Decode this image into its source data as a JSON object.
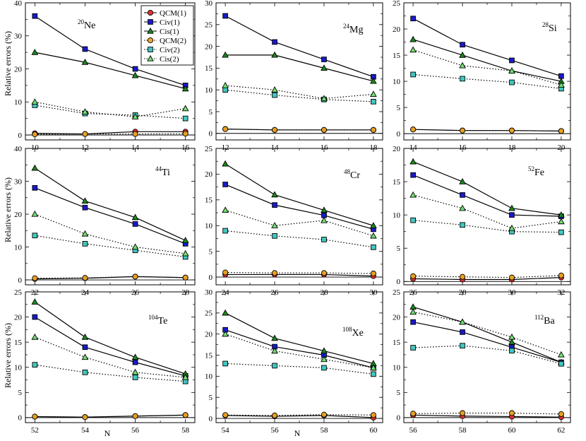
{
  "figure": {
    "ylabel": "Relative errors (%)",
    "xlabel": "N",
    "colors": {
      "QCM": "#e8a020",
      "QCM1_fill": "#e03030",
      "Civ": "#1a1ac8",
      "Civ2_fill": "#40c8c0",
      "Cis": "#1a8a1a",
      "Cis2_fill": "#70e070",
      "line": "#000000"
    },
    "legend": [
      {
        "label": "QCM(1)",
        "marker": "circle",
        "fill": "#e03030",
        "dash": false
      },
      {
        "label": "Civ(1)",
        "marker": "square",
        "fill": "#1a1ac8",
        "dash": false
      },
      {
        "label": "Cis(1)",
        "marker": "triangle",
        "fill": "#1a8a1a",
        "dash": false
      },
      {
        "label": "QCM(2)",
        "marker": "circle",
        "fill": "#f0a830",
        "dash": true
      },
      {
        "label": "Civ(2)",
        "marker": "square",
        "fill": "#40c8c0",
        "dash": true
      },
      {
        "label": "Cis(2)",
        "marker": "triangle",
        "fill": "#70e070",
        "dash": true
      }
    ]
  },
  "chart_data": [
    {
      "type": "line",
      "nucleus_mass": "20",
      "nucleus_symbol": "Ne",
      "x": [
        10,
        12,
        14,
        16
      ],
      "xticks": [
        10,
        12,
        14,
        16
      ],
      "ylim": [
        -1.5,
        40
      ],
      "yticks": [
        0,
        10,
        20,
        30,
        40
      ],
      "series": [
        {
          "name": "QCM(1)",
          "values": [
            0.5,
            0.3,
            1.0,
            1.0
          ]
        },
        {
          "name": "Civ(1)",
          "values": [
            36,
            26,
            20,
            15
          ]
        },
        {
          "name": "Cis(1)",
          "values": [
            25,
            22,
            18,
            14
          ]
        },
        {
          "name": "QCM(2)",
          "values": [
            0.2,
            0.3,
            0.3,
            0.4
          ]
        },
        {
          "name": "Civ(2)",
          "values": [
            9,
            6.5,
            6,
            5
          ]
        },
        {
          "name": "Cis(2)",
          "values": [
            10,
            7,
            5.5,
            8
          ]
        }
      ]
    },
    {
      "type": "line",
      "nucleus_mass": "24",
      "nucleus_symbol": "Mg",
      "x": [
        12,
        14,
        16,
        18
      ],
      "xticks": [
        12,
        14,
        16,
        18
      ],
      "ylim": [
        -1.5,
        30
      ],
      "yticks": [
        0,
        5,
        10,
        15,
        20,
        25,
        30
      ],
      "series": [
        {
          "name": "QCM(1)",
          "values": [
            1.0,
            0.8,
            0.8,
            0.8
          ]
        },
        {
          "name": "Civ(1)",
          "values": [
            27,
            21,
            17,
            13
          ]
        },
        {
          "name": "Cis(1)",
          "values": [
            18,
            18,
            15,
            12
          ]
        },
        {
          "name": "QCM(2)",
          "values": [
            1.0,
            0.8,
            0.8,
            0.8
          ]
        },
        {
          "name": "Civ(2)",
          "values": [
            10,
            8.8,
            7.8,
            7.3
          ]
        },
        {
          "name": "Cis(2)",
          "values": [
            11,
            10,
            8,
            9
          ]
        }
      ]
    },
    {
      "type": "line",
      "nucleus_mass": "28",
      "nucleus_symbol": "Si",
      "x": [
        14,
        16,
        18,
        20
      ],
      "xticks": [
        14,
        16,
        18,
        20
      ],
      "ylim": [
        -1.2,
        25
      ],
      "yticks": [
        0,
        5,
        10,
        15,
        20,
        25
      ],
      "series": [
        {
          "name": "QCM(1)",
          "values": [
            0.8,
            0.6,
            0.6,
            0.5
          ]
        },
        {
          "name": "Civ(1)",
          "values": [
            22,
            17,
            14,
            11
          ]
        },
        {
          "name": "Cis(1)",
          "values": [
            18,
            15,
            12,
            10
          ]
        },
        {
          "name": "QCM(2)",
          "values": [
            0.8,
            0.6,
            0.6,
            0.5
          ]
        },
        {
          "name": "Civ(2)",
          "values": [
            11.3,
            10.5,
            9.8,
            8.6
          ]
        },
        {
          "name": "Cis(2)",
          "values": [
            16,
            13,
            12,
            9.3
          ]
        }
      ]
    },
    {
      "type": "line",
      "nucleus_mass": "44",
      "nucleus_symbol": "Ti",
      "x": [
        22,
        24,
        26,
        28
      ],
      "xticks": [
        22,
        24,
        26,
        28
      ],
      "ylim": [
        -1.5,
        40
      ],
      "yticks": [
        0,
        10,
        20,
        30,
        40
      ],
      "series": [
        {
          "name": "QCM(1)",
          "values": [
            0.3,
            0.5,
            1.0,
            0.7
          ]
        },
        {
          "name": "Civ(1)",
          "values": [
            28,
            22,
            17,
            11
          ]
        },
        {
          "name": "Cis(1)",
          "values": [
            34,
            24,
            19,
            12
          ]
        },
        {
          "name": "QCM(2)",
          "values": [
            0.5,
            0.6,
            1.0,
            0.7
          ]
        },
        {
          "name": "Civ(2)",
          "values": [
            13.5,
            11,
            9,
            7
          ]
        },
        {
          "name": "Cis(2)",
          "values": [
            20,
            14,
            10,
            8
          ]
        }
      ]
    },
    {
      "type": "line",
      "nucleus_mass": "48",
      "nucleus_symbol": "Cr",
      "x": [
        24,
        26,
        28,
        30
      ],
      "xticks": [
        24,
        26,
        28,
        30
      ],
      "ylim": [
        -1.5,
        25
      ],
      "yticks": [
        0,
        5,
        10,
        15,
        20,
        25
      ],
      "series": [
        {
          "name": "QCM(1)",
          "values": [
            0.5,
            0.5,
            0.5,
            0.2
          ]
        },
        {
          "name": "Civ(1)",
          "values": [
            18,
            14,
            12,
            9.3
          ]
        },
        {
          "name": "Cis(1)",
          "values": [
            22,
            16,
            13,
            10
          ]
        },
        {
          "name": "QCM(2)",
          "values": [
            0.9,
            0.8,
            0.8,
            0.7
          ]
        },
        {
          "name": "Civ(2)",
          "values": [
            9,
            8,
            7.3,
            5.8
          ]
        },
        {
          "name": "Cis(2)",
          "values": [
            13,
            10,
            11,
            8
          ]
        }
      ]
    },
    {
      "type": "line",
      "nucleus_mass": "52",
      "nucleus_symbol": "Fe",
      "x": [
        26,
        28,
        30,
        32
      ],
      "xticks": [
        26,
        28,
        30,
        32
      ],
      "ylim": [
        -0.5,
        20
      ],
      "yticks": [
        0,
        5,
        10,
        15,
        20
      ],
      "series": [
        {
          "name": "QCM(1)",
          "values": [
            0.4,
            0.3,
            0.3,
            0.6
          ]
        },
        {
          "name": "Civ(1)",
          "values": [
            16,
            13,
            10,
            9.8
          ]
        },
        {
          "name": "Cis(1)",
          "values": [
            18,
            15,
            11,
            10
          ]
        },
        {
          "name": "QCM(2)",
          "values": [
            0.8,
            0.7,
            0.6,
            0.9
          ]
        },
        {
          "name": "Civ(2)",
          "values": [
            9.2,
            8.5,
            7.5,
            7.4
          ]
        },
        {
          "name": "Cis(2)",
          "values": [
            13,
            11,
            8,
            9
          ]
        }
      ]
    },
    {
      "type": "line",
      "nucleus_mass": "104",
      "nucleus_symbol": "Te",
      "x": [
        52,
        54,
        56,
        58
      ],
      "xticks": [
        52,
        54,
        56,
        58
      ],
      "ylim": [
        -1,
        25
      ],
      "yticks": [
        0,
        5,
        10,
        15,
        20,
        25
      ],
      "series": [
        {
          "name": "QCM(1)",
          "values": [
            0.2,
            0.1,
            0.3,
            0.5
          ]
        },
        {
          "name": "Civ(1)",
          "values": [
            20,
            14,
            11,
            8.3
          ]
        },
        {
          "name": "Cis(1)",
          "values": [
            23,
            16,
            12,
            8.7
          ]
        },
        {
          "name": "QCM(2)",
          "values": [
            0.2,
            0.1,
            0.3,
            0.5
          ]
        },
        {
          "name": "Civ(2)",
          "values": [
            10.5,
            9,
            8,
            7.2
          ]
        },
        {
          "name": "Cis(2)",
          "values": [
            16,
            12,
            9,
            8
          ]
        }
      ]
    },
    {
      "type": "line",
      "nucleus_mass": "108",
      "nucleus_symbol": "Xe",
      "x": [
        54,
        56,
        58,
        60
      ],
      "xticks": [
        54,
        56,
        58,
        60
      ],
      "ylim": [
        -1,
        30
      ],
      "yticks": [
        0,
        5,
        10,
        15,
        20,
        25,
        30
      ],
      "series": [
        {
          "name": "QCM(1)",
          "values": [
            0.7,
            0.5,
            0.7,
            0.2
          ]
        },
        {
          "name": "Civ(1)",
          "values": [
            21,
            17,
            15,
            12
          ]
        },
        {
          "name": "Cis(1)",
          "values": [
            25,
            19,
            16,
            13
          ]
        },
        {
          "name": "QCM(2)",
          "values": [
            0.8,
            0.7,
            0.9,
            0.8
          ]
        },
        {
          "name": "Civ(2)",
          "values": [
            13,
            12.5,
            12,
            10.5
          ]
        },
        {
          "name": "Cis(2)",
          "values": [
            20,
            16,
            14,
            12
          ]
        }
      ]
    },
    {
      "type": "line",
      "nucleus_mass": "112",
      "nucleus_symbol": "Ba",
      "x": [
        56,
        58,
        60,
        62
      ],
      "xticks": [
        56,
        58,
        60,
        62
      ],
      "ylim": [
        -1,
        25
      ],
      "yticks": [
        0,
        5,
        10,
        15,
        20,
        25
      ],
      "series": [
        {
          "name": "QCM(1)",
          "values": [
            0.5,
            0.3,
            0.2,
            0.1
          ]
        },
        {
          "name": "Civ(1)",
          "values": [
            19,
            17,
            14,
            11
          ]
        },
        {
          "name": "Cis(1)",
          "values": [
            22,
            19,
            15,
            11
          ]
        },
        {
          "name": "QCM(2)",
          "values": [
            0.8,
            0.9,
            0.9,
            0.7
          ]
        },
        {
          "name": "Civ(2)",
          "values": [
            13.9,
            14.3,
            13.3,
            10.7
          ]
        },
        {
          "name": "Cis(2)",
          "values": [
            21,
            19,
            16,
            12.5
          ]
        }
      ]
    }
  ]
}
